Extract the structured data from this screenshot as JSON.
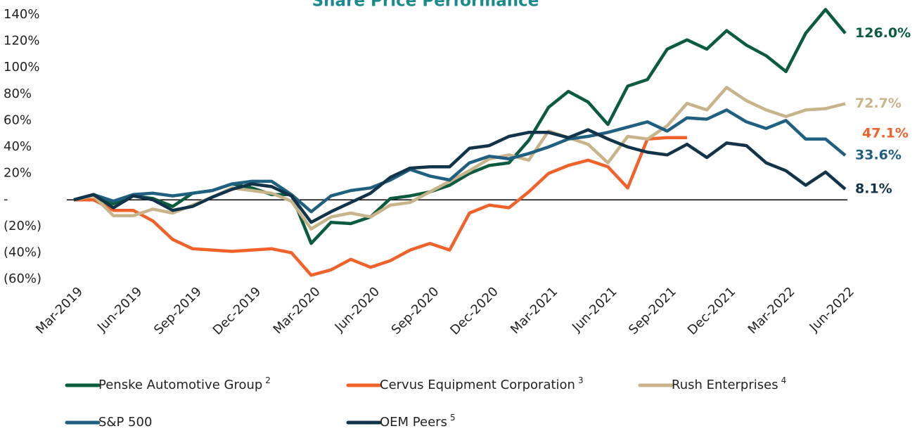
{
  "chart_data": {
    "type": "line",
    "title": "Share Price Performance",
    "categories": [
      "Mar-2019",
      null,
      null,
      "Jun-2019",
      null,
      null,
      "Sep-2019",
      null,
      null,
      "Dec-2019",
      null,
      null,
      "Mar-2020",
      null,
      null,
      "Jun-2020",
      null,
      null,
      "Sep-2020",
      null,
      null,
      "Dec-2020",
      null,
      null,
      "Mar-2021",
      null,
      null,
      "Jun-2021",
      null,
      null,
      "Sep-2021",
      null,
      null,
      "Dec-2021",
      null,
      null,
      "Mar-2022",
      null,
      null,
      "Jun-2022"
    ],
    "ylim": [
      -60,
      140
    ],
    "yticks": [
      {
        "value": -60,
        "label": "(60%)"
      },
      {
        "value": -40,
        "label": "(40%)"
      },
      {
        "value": -20,
        "label": "(20%)"
      },
      {
        "value": 0,
        "label": "-"
      },
      {
        "value": 20,
        "label": "20%"
      },
      {
        "value": 40,
        "label": "40%"
      },
      {
        "value": 60,
        "label": "60%"
      },
      {
        "value": 80,
        "label": "80%"
      },
      {
        "value": 100,
        "label": "100%"
      },
      {
        "value": 120,
        "label": "120%"
      },
      {
        "value": 140,
        "label": "140%"
      }
    ],
    "grid": false,
    "series": [
      {
        "name": "Penske Automotive Group",
        "note": "2",
        "color": "#0b5c3f",
        "end_label": "126.0%",
        "values": [
          0,
          4,
          -3,
          3,
          1,
          -5,
          5,
          7,
          12,
          9,
          4,
          4,
          -33,
          -17,
          -18,
          -13,
          1,
          3,
          6,
          11,
          20,
          26,
          28,
          45,
          70,
          82,
          74,
          57,
          86,
          91,
          114,
          121,
          114,
          128,
          117,
          109,
          97,
          126,
          144,
          126.0
        ]
      },
      {
        "name": "Cervus Equipment Corporation",
        "note": "3",
        "color": "#f0622a",
        "end_label": "47.1%",
        "values": [
          0,
          0,
          -8,
          -8,
          -16,
          -30,
          -37,
          -38,
          -39,
          -38,
          -37,
          -40,
          -57,
          -53,
          -45,
          -51,
          -46,
          -38,
          -33,
          -38,
          -10,
          -4,
          -6,
          6,
          20,
          26,
          30,
          25,
          9,
          46,
          47,
          47.1,
          null,
          null,
          null,
          null,
          null,
          null,
          null,
          null
        ]
      },
      {
        "name": "Rush Enterprises",
        "note": "4",
        "color": "#c8b48a",
        "end_label": "72.7%",
        "values": [
          0,
          3,
          -12,
          -12,
          -7,
          -10,
          -4,
          2,
          9,
          7,
          5,
          -1,
          -22,
          -13,
          -10,
          -13,
          -4,
          -2,
          6,
          14,
          22,
          31,
          34,
          30,
          52,
          47,
          42,
          28,
          48,
          46,
          56,
          73,
          68,
          85,
          75,
          68,
          63,
          68,
          69,
          72.7
        ]
      },
      {
        "name": "S&P 500",
        "color": "#1f5f7f",
        "end_label": "33.6%",
        "values": [
          0,
          4,
          -1,
          4,
          5,
          3,
          5,
          7,
          12,
          14,
          14,
          4,
          -9,
          3,
          7,
          9,
          15,
          23,
          18,
          15,
          28,
          33,
          31,
          35,
          40,
          46,
          48,
          51,
          55,
          59,
          52,
          62,
          61,
          68,
          59,
          54,
          60,
          46,
          46,
          33.6
        ]
      },
      {
        "name": "OEM Peers",
        "note": "5",
        "color": "#12344a",
        "end_label": "8.1%",
        "values": [
          0,
          4,
          -6,
          3,
          0,
          -8,
          -5,
          2,
          8,
          12,
          10,
          3,
          -17,
          -9,
          -2,
          5,
          17,
          24,
          25,
          25,
          39,
          41,
          48,
          51,
          51,
          47,
          53,
          46,
          40,
          36,
          34,
          42,
          32,
          43,
          41,
          28,
          22,
          11,
          21,
          8.1
        ]
      }
    ]
  }
}
